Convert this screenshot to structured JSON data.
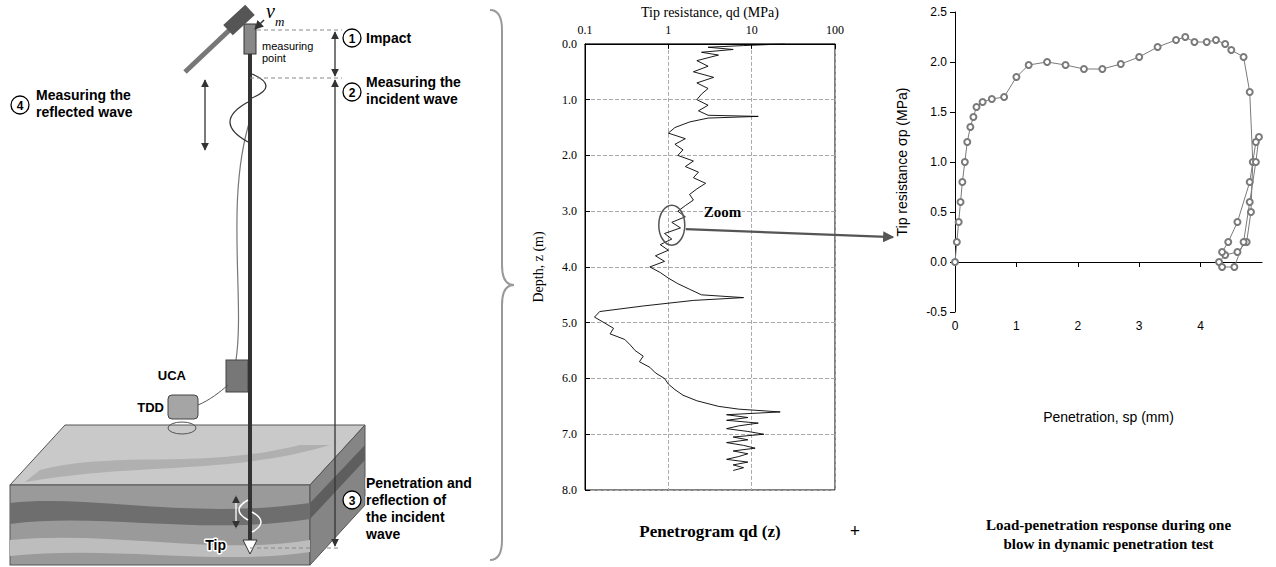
{
  "diagram": {
    "velocity_symbol": {
      "symbol": "v",
      "subscript": "m"
    },
    "measuring_point": "measuring point",
    "steps": [
      {
        "number": 1,
        "label": "Impact"
      },
      {
        "number": 2,
        "label": "Measuring the incident wave"
      },
      {
        "number": 3,
        "label": "Penetration and reflection of the incident wave"
      },
      {
        "number": 4,
        "label": "Measuring the reflected wave"
      }
    ],
    "devices": [
      "UCA",
      "TDD"
    ],
    "tip": "Tip",
    "joiner": "+"
  },
  "chart_data": [
    {
      "type": "line",
      "title": "Penetrogram qd (z)",
      "xlabel": "Tip resistance, qd (MPa)",
      "ylabel": "Depth, z (m)",
      "log": "x",
      "grid": true,
      "color": "#000000",
      "line_style": "solid",
      "xlim": [
        0.1,
        100
      ],
      "xticks": [
        0.1,
        1,
        10,
        100
      ],
      "ylim": [
        8,
        0
      ],
      "yticks": [
        {
          "value": 0,
          "label": "0.0"
        },
        {
          "value": 1,
          "label": "1.0"
        },
        {
          "value": 2,
          "label": "2.0"
        },
        {
          "value": 3,
          "label": "3.0"
        },
        {
          "value": 4,
          "label": "4.0"
        },
        {
          "value": 5,
          "label": "5.0"
        },
        {
          "value": 6,
          "label": "6.0"
        },
        {
          "value": 7,
          "label": "7.0"
        },
        {
          "value": 8,
          "label": "8.0"
        }
      ],
      "x": [
        25,
        8,
        3,
        6,
        2.5,
        4,
        2.2,
        3,
        2,
        3.5,
        2.2,
        3,
        2.5,
        2.2,
        3,
        2.3,
        3,
        12,
        3,
        1.8,
        1.2,
        1.0,
        1.6,
        1.2,
        1.5,
        1.3,
        2,
        1.6,
        2.3,
        2,
        2.8,
        2.2,
        1.8,
        2,
        1.6,
        1.3,
        1.6,
        1.1,
        1.4,
        0.9,
        1.1,
        0.8,
        1.0,
        0.7,
        0.9,
        0.6,
        0.8,
        1.0,
        1.3,
        1.8,
        2.5,
        8,
        2,
        0.5,
        0.15,
        0.13,
        0.17,
        0.22,
        0.2,
        0.3,
        0.35,
        0.4,
        0.5,
        0.45,
        0.6,
        0.7,
        0.9,
        1,
        1.2,
        1.5,
        2.2,
        4,
        7,
        22,
        5,
        9,
        5,
        12,
        7,
        5,
        9,
        14,
        6,
        9,
        5,
        8,
        11,
        6,
        9,
        7,
        5,
        9,
        6,
        8,
        6
      ],
      "y": [
        0.0,
        0.03,
        0.06,
        0.1,
        0.15,
        0.2,
        0.3,
        0.4,
        0.5,
        0.6,
        0.7,
        0.8,
        0.9,
        1.0,
        1.1,
        1.2,
        1.28,
        1.3,
        1.33,
        1.4,
        1.5,
        1.6,
        1.7,
        1.8,
        1.9,
        2.0,
        2.1,
        2.2,
        2.3,
        2.4,
        2.5,
        2.6,
        2.7,
        2.8,
        2.9,
        3.0,
        3.1,
        3.2,
        3.3,
        3.4,
        3.5,
        3.6,
        3.7,
        3.8,
        3.9,
        4.0,
        4.1,
        4.2,
        4.3,
        4.4,
        4.5,
        4.55,
        4.6,
        4.7,
        4.8,
        4.9,
        5.0,
        5.1,
        5.2,
        5.3,
        5.4,
        5.5,
        5.6,
        5.7,
        5.8,
        5.9,
        6.0,
        6.1,
        6.2,
        6.3,
        6.4,
        6.5,
        6.55,
        6.6,
        6.65,
        6.7,
        6.75,
        6.8,
        6.85,
        6.9,
        6.95,
        7.0,
        7.05,
        7.1,
        7.15,
        7.2,
        7.25,
        7.3,
        7.35,
        7.4,
        7.45,
        7.5,
        7.55,
        7.6,
        7.65
      ],
      "annotations": [
        {
          "text": "Zoom",
          "x": 1.1,
          "y": 3.25
        }
      ]
    },
    {
      "type": "line",
      "title": "Load-penetration response during one blow in dynamic penetration test",
      "xlabel": "Penetration, sp (mm)",
      "ylabel": "Tip resistance σp (MPa)",
      "grid": false,
      "color": "#7a7a7a",
      "marker": "circle",
      "line_style": "solid",
      "xlim": [
        0,
        5
      ],
      "xticks": [
        0,
        1,
        2,
        3,
        4
      ],
      "ylim": [
        -0.5,
        2.5
      ],
      "yticks": [
        -0.5,
        {
          "value": 0,
          "label": "0.0"
        },
        0.5,
        {
          "value": 1,
          "label": "1.0"
        },
        1.5,
        {
          "value": 2,
          "label": "2.0"
        },
        2.5
      ],
      "x": [
        0,
        0.03,
        0.06,
        0.09,
        0.12,
        0.16,
        0.2,
        0.25,
        0.3,
        0.35,
        0.45,
        0.6,
        0.8,
        1.0,
        1.2,
        1.5,
        1.8,
        2.1,
        2.4,
        2.7,
        3.0,
        3.3,
        3.6,
        3.75,
        3.9,
        4.1,
        4.25,
        4.4,
        4.5,
        4.7,
        4.8,
        4.85,
        4.82,
        4.75,
        4.6,
        4.4,
        4.3,
        4.35,
        4.55,
        4.7,
        4.8,
        4.9,
        4.95,
        4.9,
        4.8,
        4.6,
        4.45,
        4.35
      ],
      "y": [
        0,
        0.2,
        0.4,
        0.6,
        0.8,
        1.0,
        1.2,
        1.35,
        1.45,
        1.55,
        1.6,
        1.63,
        1.65,
        1.85,
        1.97,
        2.0,
        1.97,
        1.93,
        1.93,
        1.98,
        2.05,
        2.15,
        2.22,
        2.25,
        2.2,
        2.2,
        2.22,
        2.18,
        2.12,
        2.05,
        1.7,
        1.0,
        0.5,
        0.2,
        0.1,
        0.07,
        0.0,
        -0.05,
        -0.05,
        0.2,
        0.6,
        1.0,
        1.25,
        1.2,
        0.8,
        0.4,
        0.2,
        0.1
      ]
    }
  ]
}
